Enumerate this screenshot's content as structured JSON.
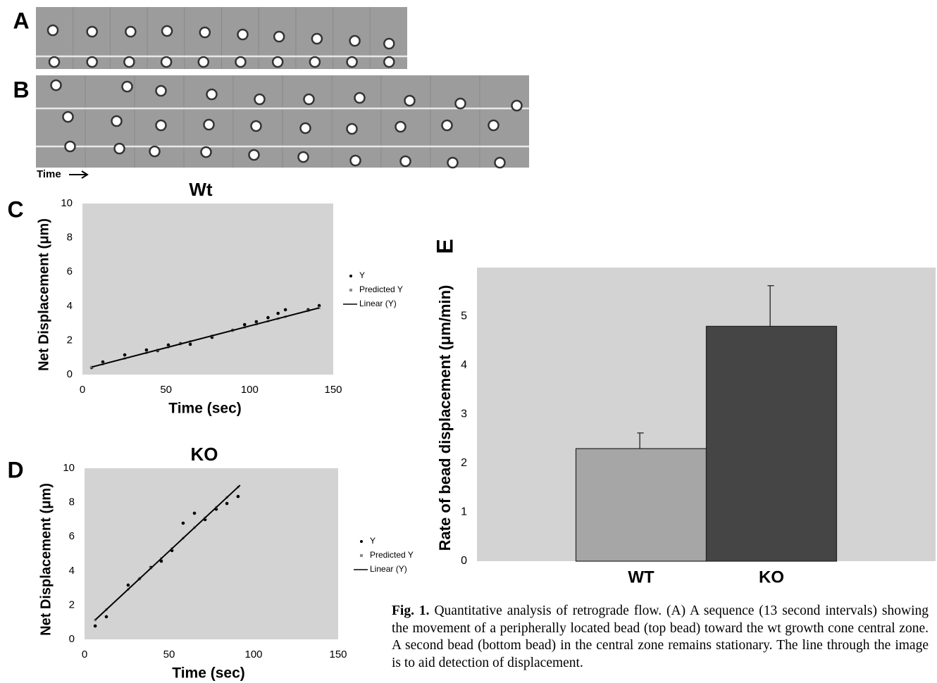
{
  "panel_labels": [
    "A",
    "B",
    "C",
    "D",
    "E"
  ],
  "time_label": "Time",
  "chart_data": [
    {
      "type": "scatter",
      "title": "Wt",
      "x_label": "Time (sec)",
      "y_label": "Net Displacement (μm)",
      "xlim": [
        0,
        150
      ],
      "xticks": [
        0,
        50,
        100,
        150
      ],
      "ylim": [
        0,
        10
      ],
      "yticks": [
        0,
        2,
        4,
        6,
        8,
        10
      ],
      "legend": "right",
      "series": [
        {
          "name": "Y",
          "mode": "markers",
          "color": "#000000",
          "x": [
            5.5,
            12.2,
            25.3,
            38.3,
            45,
            51.4,
            58.6,
            64.5,
            77.5,
            89.8,
            97,
            104,
            111,
            117,
            121.4,
            135,
            141.6
          ],
          "values": [
            0.41,
            0.74,
            1.15,
            1.44,
            1.4,
            1.73,
            1.81,
            1.77,
            2.18,
            2.59,
            2.92,
            3.09,
            3.33,
            3.58,
            3.79,
            3.79,
            4.03
          ]
        },
        {
          "name": "Predicted Y",
          "mode": "markers",
          "color": "#8c8c8c",
          "x": [
            5.5,
            12.2,
            25.3,
            38.3,
            45,
            51.4,
            58.6,
            64.5,
            77.5,
            89.8,
            97,
            104,
            111,
            117,
            121.4,
            135,
            141.6
          ],
          "values": [
            0.44,
            0.61,
            0.94,
            1.27,
            1.44,
            1.6,
            1.79,
            1.94,
            2.27,
            2.58,
            2.76,
            2.94,
            3.12,
            3.27,
            3.38,
            3.73,
            3.9
          ]
        },
        {
          "name": "Linear (Y)",
          "mode": "line",
          "color": "#000000",
          "x": [
            5.5,
            141.6
          ],
          "values": [
            0.44,
            3.9
          ]
        }
      ]
    },
    {
      "type": "scatter",
      "title": "KO",
      "x_label": "Time (sec)",
      "y_label": "Net Displacement (μm)",
      "xlim": [
        0,
        150
      ],
      "xticks": [
        0,
        50,
        100,
        150
      ],
      "ylim": [
        0,
        10
      ],
      "yticks": [
        0,
        2,
        4,
        6,
        8,
        10
      ],
      "legend": "right",
      "series": [
        {
          "name": "Y",
          "mode": "markers",
          "color": "#000000",
          "x": [
            6.3,
            12.9,
            25.8,
            32.5,
            39.2,
            45.4,
            51.7,
            58.3,
            65,
            71.3,
            77.9,
            84.2,
            90.8
          ],
          "values": [
            0.78,
            1.32,
            3.17,
            3.54,
            4.2,
            4.57,
            5.19,
            6.79,
            7.37,
            7,
            7.61,
            7.94,
            8.35
          ]
        },
        {
          "name": "Predicted Y",
          "mode": "markers",
          "color": "#8c8c8c",
          "x": [
            6.3,
            12.9,
            25.8,
            32.5,
            39.2,
            45.4,
            51.7,
            58.3,
            65,
            71.3,
            77.9,
            84.2,
            90.8
          ],
          "values": [
            1.13,
            1.74,
            2.92,
            3.54,
            4.16,
            4.73,
            5.31,
            5.91,
            6.53,
            7.11,
            7.72,
            8.3,
            8.9
          ]
        },
        {
          "name": "Linear (Y)",
          "mode": "line",
          "color": "#000000",
          "x": [
            6.3,
            92
          ],
          "values": [
            1.13,
            9.01
          ]
        }
      ]
    },
    {
      "type": "bar",
      "y_label": "Rate of bead displacement (μm/min)",
      "categories": [
        "WT",
        "KO"
      ],
      "values": [
        2.3,
        4.8
      ],
      "errors": [
        0.32,
        0.83
      ],
      "colors": [
        "#a6a6a6",
        "#454545"
      ],
      "ylim": [
        0,
        6
      ],
      "yticks": [
        0,
        1,
        2,
        3,
        4,
        5
      ]
    }
  ],
  "caption": {
    "label": "Fig. 1.",
    "text": "Quantitative analysis of retrograde flow. (A) A sequence (13 second intervals) showing the movement of a peripherally located bead (top bead) toward the wt growth cone central zone. A second bead (bottom bead) in the central zone remains stationary. The line through the image is to aid detection of displacement."
  }
}
